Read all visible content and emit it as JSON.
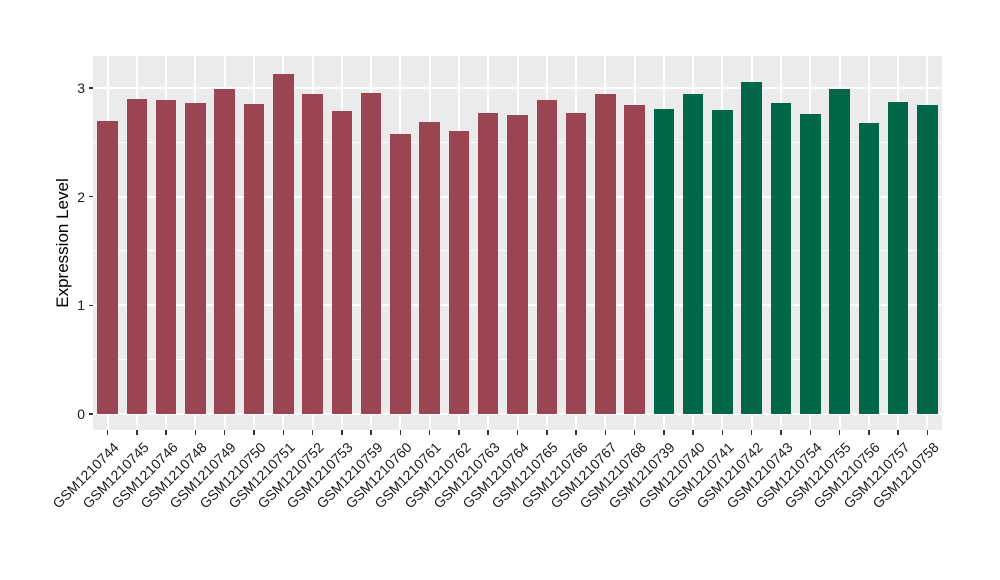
{
  "chart_data": {
    "type": "bar",
    "title": "",
    "ylabel": "Expression Level",
    "xlabel": "",
    "ylim": [
      0,
      3.29
    ],
    "yticks": [
      0,
      1,
      2,
      3
    ],
    "yticks_minor": [
      0.5,
      1.5,
      2.5
    ],
    "grid": "on",
    "legend": "none",
    "panel_bg": "#EBEBEB",
    "grid_color": "#FFFFFF",
    "axis_text_color": "#1A1A1A",
    "group_colors": {
      "group1": "#9B4452",
      "group2": "#006849"
    },
    "bars": [
      {
        "label": "GSM1210744",
        "value": 2.7,
        "group": "group1"
      },
      {
        "label": "GSM1210745",
        "value": 2.9,
        "group": "group1"
      },
      {
        "label": "GSM1210746",
        "value": 2.89,
        "group": "group1"
      },
      {
        "label": "GSM1210748",
        "value": 2.86,
        "group": "group1"
      },
      {
        "label": "GSM1210749",
        "value": 2.99,
        "group": "group1"
      },
      {
        "label": "GSM1210750",
        "value": 2.85,
        "group": "group1"
      },
      {
        "label": "GSM1210751",
        "value": 3.13,
        "group": "group1"
      },
      {
        "label": "GSM1210752",
        "value": 2.94,
        "group": "group1"
      },
      {
        "label": "GSM1210753",
        "value": 2.79,
        "group": "group1"
      },
      {
        "label": "GSM1210759",
        "value": 2.95,
        "group": "group1"
      },
      {
        "label": "GSM1210760",
        "value": 2.58,
        "group": "group1"
      },
      {
        "label": "GSM1210761",
        "value": 2.69,
        "group": "group1"
      },
      {
        "label": "GSM1210762",
        "value": 2.6,
        "group": "group1"
      },
      {
        "label": "GSM1210763",
        "value": 2.77,
        "group": "group1"
      },
      {
        "label": "GSM1210764",
        "value": 2.75,
        "group": "group1"
      },
      {
        "label": "GSM1210765",
        "value": 2.89,
        "group": "group1"
      },
      {
        "label": "GSM1210766",
        "value": 2.77,
        "group": "group1"
      },
      {
        "label": "GSM1210767",
        "value": 2.94,
        "group": "group1"
      },
      {
        "label": "GSM1210768",
        "value": 2.84,
        "group": "group1"
      },
      {
        "label": "GSM1210739",
        "value": 2.81,
        "group": "group2"
      },
      {
        "label": "GSM1210740",
        "value": 2.94,
        "group": "group2"
      },
      {
        "label": "GSM1210741",
        "value": 2.8,
        "group": "group2"
      },
      {
        "label": "GSM1210742",
        "value": 3.05,
        "group": "group2"
      },
      {
        "label": "GSM1210743",
        "value": 2.86,
        "group": "group2"
      },
      {
        "label": "GSM1210754",
        "value": 2.76,
        "group": "group2"
      },
      {
        "label": "GSM1210755",
        "value": 2.99,
        "group": "group2"
      },
      {
        "label": "GSM1210756",
        "value": 2.68,
        "group": "group2"
      },
      {
        "label": "GSM1210757",
        "value": 2.87,
        "group": "group2"
      },
      {
        "label": "GSM1210758",
        "value": 2.84,
        "group": "group2"
      }
    ]
  }
}
